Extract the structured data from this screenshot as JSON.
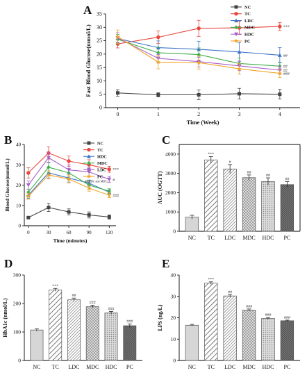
{
  "chart_data": [
    {
      "panel": "A",
      "type": "line",
      "title": "",
      "xlabel": "Time (Week)",
      "ylabel": "Fast Blood Glucose(mmol/L)",
      "x": [
        0,
        1,
        2,
        3,
        4
      ],
      "xlim": [
        -0.3,
        4.5
      ],
      "ylim": [
        0,
        35
      ],
      "yticks": [
        0,
        5,
        10,
        15,
        20,
        25,
        30,
        35
      ],
      "legend": "top-right",
      "series": [
        {
          "name": "NC",
          "color": "#444444",
          "marker": "square",
          "values": [
            5.5,
            4.8,
            4.8,
            5.2,
            5.0
          ],
          "errors": [
            1.2,
            0.8,
            1.8,
            2.0,
            1.8
          ]
        },
        {
          "name": "TC",
          "color": "#e8473f",
          "marker": "circle",
          "values": [
            23.8,
            26.3,
            29.6,
            29.8,
            30.3
          ],
          "errors": [
            1.5,
            2.3,
            3.0,
            2.5,
            1.5
          ]
        },
        {
          "name": "LDC",
          "color": "#3b73c8",
          "marker": "triangle",
          "values": [
            25.8,
            22.4,
            21.8,
            20.8,
            19.6
          ],
          "errors": [
            1.5,
            2.5,
            3.0,
            3.5,
            2.8
          ]
        },
        {
          "name": "MDC",
          "color": "#3fae4a",
          "marker": "diamond",
          "values": [
            25.5,
            20.5,
            19.8,
            16.5,
            15.5
          ],
          "errors": [
            1.8,
            2.0,
            2.5,
            2.0,
            1.5
          ]
        },
        {
          "name": "HDC",
          "color": "#a660c8",
          "marker": "triangle-down",
          "values": [
            26.0,
            18.4,
            17.2,
            15.6,
            14.0
          ],
          "errors": [
            2.0,
            1.5,
            2.0,
            1.8,
            1.5
          ]
        },
        {
          "name": "PC",
          "color": "#f0a428",
          "marker": "star",
          "values": [
            26.5,
            17.0,
            16.8,
            14.5,
            12.8
          ],
          "errors": [
            2.5,
            2.5,
            2.5,
            2.0,
            1.5
          ]
        }
      ],
      "annotations": [
        {
          "series": "TC",
          "text": "***"
        },
        {
          "series": "LDC",
          "text": "##"
        },
        {
          "series": "MDC",
          "text": "##"
        },
        {
          "series": "HDC",
          "text": "##"
        },
        {
          "series": "PC",
          "text": "###"
        }
      ]
    },
    {
      "panel": "B",
      "type": "line",
      "title": "",
      "xlabel": "Time (minutes)",
      "ylabel": "Blood Glucose(mmol/L)",
      "x": [
        0,
        30,
        60,
        90,
        120
      ],
      "xlim": [
        -6,
        130
      ],
      "ylim": [
        0,
        40
      ],
      "yticks": [
        0,
        10,
        20,
        30,
        40
      ],
      "legend": "top-right",
      "legend_note": "##(HDC and MDC)",
      "series": [
        {
          "name": "NC",
          "color": "#444444",
          "marker": "square",
          "values": [
            4.0,
            9.0,
            6.8,
            5.3,
            4.3
          ],
          "errors": [
            0.5,
            2.0,
            1.5,
            1.5,
            1.0
          ]
        },
        {
          "name": "TC",
          "color": "#e8473f",
          "marker": "circle",
          "values": [
            26.0,
            35.8,
            31.8,
            30.0,
            27.8
          ],
          "errors": [
            2.5,
            3.0,
            2.5,
            2.5,
            1.5
          ]
        },
        {
          "name": "HDC",
          "color": "#3b73c8",
          "marker": "triangle",
          "values": [
            15.0,
            26.0,
            23.5,
            21.0,
            16.5
          ],
          "errors": [
            1.5,
            2.5,
            2.0,
            1.5,
            1.2
          ]
        },
        {
          "name": "MDC",
          "color": "#3fae4a",
          "marker": "diamond",
          "values": [
            16.5,
            28.8,
            26.0,
            20.0,
            17.0
          ],
          "errors": [
            1.5,
            2.5,
            2.0,
            2.0,
            1.2
          ]
        },
        {
          "name": "LDC",
          "color": "#a660c8",
          "marker": "triangle-down",
          "values": [
            20.0,
            33.5,
            27.5,
            26.5,
            22.8
          ],
          "errors": [
            2.0,
            2.5,
            2.5,
            2.0,
            1.5
          ]
        },
        {
          "name": "PC",
          "color": "#f0a428",
          "marker": "star",
          "values": [
            14.5,
            25.0,
            23.0,
            18.5,
            15.0
          ],
          "errors": [
            1.5,
            2.0,
            2.0,
            1.5,
            1.2
          ]
        }
      ],
      "annotations": [
        {
          "series": "TC",
          "text": "***"
        },
        {
          "series": "LDC",
          "text": "#"
        },
        {
          "series": "PC",
          "text": "###"
        }
      ]
    },
    {
      "panel": "C",
      "type": "bar",
      "title": "",
      "xlabel": "",
      "ylabel": "AUC (OGTT)",
      "categories": [
        "NC",
        "TC",
        "LDC",
        "MDC",
        "HDC",
        "PC"
      ],
      "values": [
        730,
        3700,
        3230,
        2780,
        2580,
        2420
      ],
      "errors": [
        100,
        170,
        230,
        140,
        190,
        150
      ],
      "labels": [
        "",
        "***",
        "#",
        "##",
        "##",
        "##"
      ],
      "ylim": [
        0,
        4500
      ],
      "yticks": [
        0,
        1000,
        2000,
        3000,
        4000
      ]
    },
    {
      "panel": "D",
      "type": "bar",
      "title": "",
      "xlabel": "",
      "ylabel": "HbA1c (nmol/L)",
      "categories": [
        "NC",
        "TC",
        "LDC",
        "MDC",
        "HDC",
        "PC"
      ],
      "values": [
        107,
        248,
        213,
        189,
        167,
        122
      ],
      "errors": [
        4,
        5,
        6,
        5,
        5,
        6
      ],
      "labels": [
        "",
        "***",
        "##",
        "###",
        "###",
        "###"
      ],
      "ylim": [
        0,
        300
      ],
      "yticks": [
        0,
        100,
        200,
        300
      ]
    },
    {
      "panel": "E",
      "type": "bar",
      "title": "",
      "xlabel": "",
      "ylabel": "LPS (ng/L)",
      "categories": [
        "NC",
        "TC",
        "LDC",
        "MDC",
        "HDC",
        "PC"
      ],
      "values": [
        16.5,
        36.2,
        30.2,
        23.6,
        19.7,
        18.6
      ],
      "errors": [
        0.4,
        0.6,
        0.6,
        0.5,
        0.4,
        0.3
      ],
      "labels": [
        "",
        "***",
        "##",
        "###",
        "###",
        "###"
      ],
      "ylim": [
        0,
        40
      ],
      "yticks": [
        0,
        10,
        20,
        30,
        40
      ]
    }
  ],
  "panels": {
    "A": {
      "letter": "A"
    },
    "B": {
      "letter": "B"
    },
    "C": {
      "letter": "C"
    },
    "D": {
      "letter": "D"
    },
    "E": {
      "letter": "E"
    }
  },
  "bar_styles": {
    "NC": {
      "fill": "#d6d6d6",
      "pattern": "solid"
    },
    "TC": {
      "fill": "#ffffff",
      "pattern": "diag-wide"
    },
    "LDC": {
      "fill": "#ffffff",
      "pattern": "diag-dense"
    },
    "MDC": {
      "fill": "#e8e8e8",
      "pattern": "crosshatch"
    },
    "HDC": {
      "fill": "#dcdcdc",
      "pattern": "dots"
    },
    "PC": {
      "fill": "#7a7a7a",
      "pattern": "dark-grid"
    }
  }
}
